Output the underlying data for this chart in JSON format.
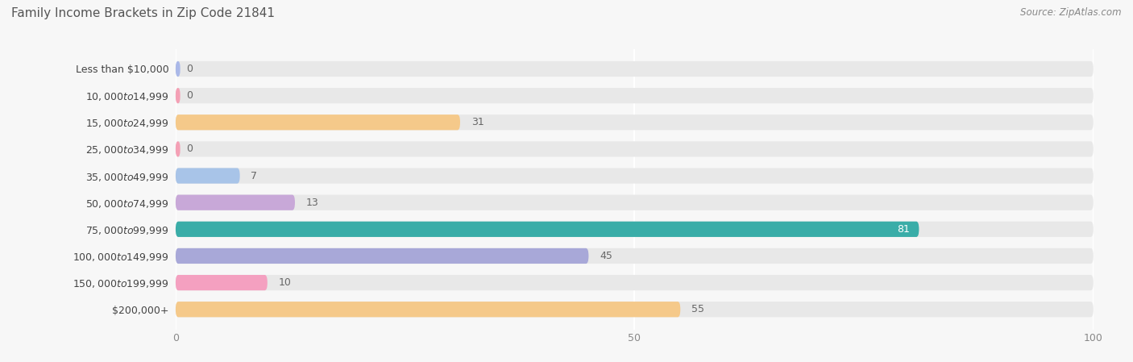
{
  "title": "Family Income Brackets in Zip Code 21841",
  "source": "Source: ZipAtlas.com",
  "categories": [
    "Less than $10,000",
    "$10,000 to $14,999",
    "$15,000 to $24,999",
    "$25,000 to $34,999",
    "$35,000 to $49,999",
    "$50,000 to $74,999",
    "$75,000 to $99,999",
    "$100,000 to $149,999",
    "$150,000 to $199,999",
    "$200,000+"
  ],
  "values": [
    0,
    0,
    31,
    0,
    7,
    13,
    81,
    45,
    10,
    55
  ],
  "bar_colors": [
    "#aab8e8",
    "#f4a0b5",
    "#f5c98a",
    "#f4a0b5",
    "#a8c4e8",
    "#c8a8d8",
    "#3aada8",
    "#a8a8d8",
    "#f4a0c0",
    "#f5c98a"
  ],
  "xlim": [
    0,
    100
  ],
  "background_color": "#f7f7f7",
  "bar_background_color": "#e8e8e8",
  "title_fontsize": 11,
  "label_fontsize": 9,
  "value_fontsize": 9,
  "bar_height": 0.58,
  "grid_color": "#ffffff",
  "tick_values": [
    0,
    50,
    100
  ]
}
